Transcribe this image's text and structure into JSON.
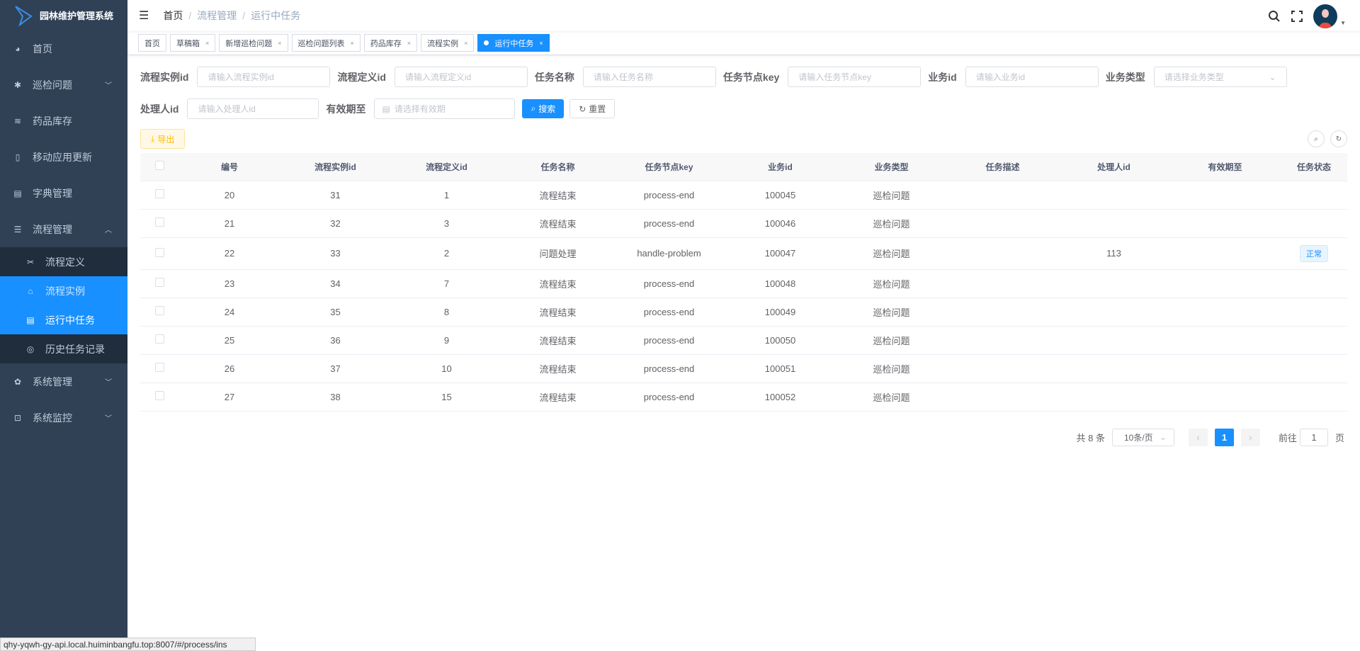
{
  "app": {
    "title": "园林维护管理系统"
  },
  "sidebar": {
    "items": [
      {
        "label": "首页",
        "icon": "dashboard-icon"
      },
      {
        "label": "巡检问题",
        "icon": "bug-icon",
        "arrow": "down"
      },
      {
        "label": "药品库存",
        "icon": "layers-icon"
      },
      {
        "label": "移动应用更新",
        "icon": "phone-icon"
      },
      {
        "label": "字典管理",
        "icon": "dict-icon"
      },
      {
        "label": "流程管理",
        "icon": "list-icon",
        "arrow": "up"
      }
    ],
    "sub": [
      {
        "label": "流程定义"
      },
      {
        "label": "流程实例"
      },
      {
        "label": "运行中任务"
      },
      {
        "label": "历史任务记录"
      }
    ],
    "bottom": [
      {
        "label": "系统管理",
        "icon": "gear-icon"
      },
      {
        "label": "系统监控",
        "icon": "monitor-icon"
      }
    ]
  },
  "header": {
    "breadcrumb": [
      "首页",
      "流程管理",
      "运行中任务"
    ]
  },
  "tags": [
    "首页",
    "草稿箱",
    "新增巡检问题",
    "巡检问题列表",
    "药品库存",
    "流程实例",
    "运行中任务"
  ],
  "filters": {
    "proc_inst": {
      "label": "流程实例id",
      "placeholder": "请输入流程实例id"
    },
    "proc_def": {
      "label": "流程定义id",
      "placeholder": "请输入流程定义id"
    },
    "task_name": {
      "label": "任务名称",
      "placeholder": "请输入任务名称"
    },
    "task_key": {
      "label": "任务节点key",
      "placeholder": "请输入任务节点key"
    },
    "biz_id": {
      "label": "业务id",
      "placeholder": "请输入业务id"
    },
    "biz_type": {
      "label": "业务类型",
      "placeholder": "请选择业务类型"
    },
    "assignee": {
      "label": "处理人id",
      "placeholder": "请输入处理人id"
    },
    "expire": {
      "label": "有效期至",
      "placeholder": "请选择有效期"
    },
    "search": "搜索",
    "reset": "重置"
  },
  "toolbar": {
    "export": "导出"
  },
  "table": {
    "headers": [
      "编号",
      "流程实例id",
      "流程定义id",
      "任务名称",
      "任务节点key",
      "业务id",
      "业务类型",
      "任务描述",
      "处理人id",
      "有效期至",
      "任务状态"
    ],
    "rows": [
      [
        "20",
        "31",
        "1",
        "流程结束",
        "process-end",
        "100045",
        "巡检问题",
        "",
        "",
        "",
        ""
      ],
      [
        "21",
        "32",
        "3",
        "流程结束",
        "process-end",
        "100046",
        "巡检问题",
        "",
        "",
        "",
        ""
      ],
      [
        "22",
        "33",
        "2",
        "问题处理",
        "handle-problem",
        "100047",
        "巡检问题",
        "",
        "113",
        "",
        "正常"
      ],
      [
        "23",
        "34",
        "7",
        "流程结束",
        "process-end",
        "100048",
        "巡检问题",
        "",
        "",
        "",
        ""
      ],
      [
        "24",
        "35",
        "8",
        "流程结束",
        "process-end",
        "100049",
        "巡检问题",
        "",
        "",
        "",
        ""
      ],
      [
        "25",
        "36",
        "9",
        "流程结束",
        "process-end",
        "100050",
        "巡检问题",
        "",
        "",
        "",
        ""
      ],
      [
        "26",
        "37",
        "10",
        "流程结束",
        "process-end",
        "100051",
        "巡检问题",
        "",
        "",
        "",
        ""
      ],
      [
        "27",
        "38",
        "15",
        "流程结束",
        "process-end",
        "100052",
        "巡检问题",
        "",
        "",
        "",
        ""
      ]
    ]
  },
  "pagination": {
    "total": "共 8 条",
    "page_size": "10条/页",
    "current": "1",
    "goto_label": "前往",
    "goto_value": "1",
    "page_suffix": "页"
  },
  "statusbar": "qhy-yqwh-gy-api.local.huiminbangfu.top:8007/#/process/ins",
  "colors": {
    "sidebar": "#304156",
    "accent": "#1890ff",
    "warning": "#ffba00"
  }
}
